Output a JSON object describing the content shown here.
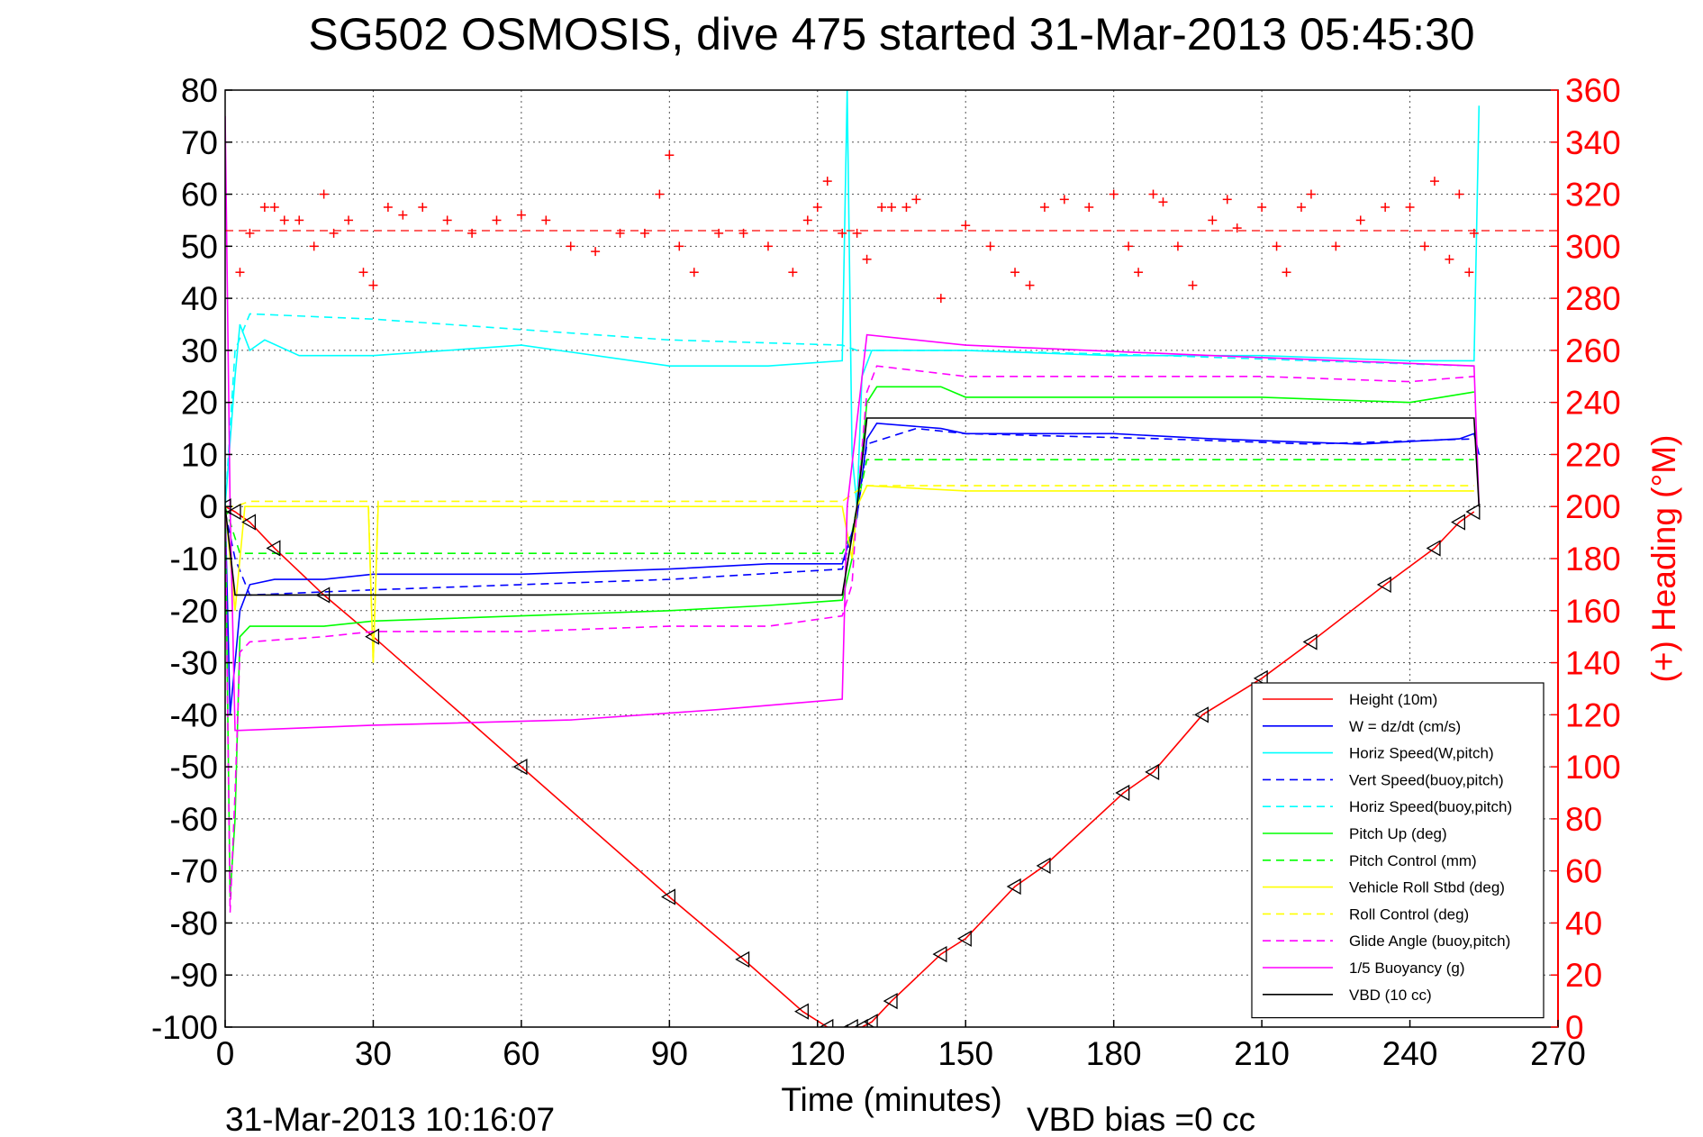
{
  "chart_data": {
    "type": "line",
    "title": "SG502 OSMOSIS, dive 475 started 31-Mar-2013 05:45:30",
    "xlabel": "Time (minutes)",
    "ylabel": "",
    "y2label": "(+) Heading (°M)",
    "xlim": [
      0,
      270
    ],
    "ylim": [
      -100,
      80
    ],
    "y2lim": [
      0,
      360
    ],
    "xticks": [
      "0",
      "30",
      "60",
      "90",
      "120",
      "150",
      "180",
      "210",
      "240",
      "270"
    ],
    "yticks": [
      "80",
      "70",
      "60",
      "50",
      "40",
      "30",
      "20",
      "10",
      "0",
      "-10",
      "-20",
      "-30",
      "-40",
      "-50",
      "-60",
      "-70",
      "-80",
      "-90",
      "-100"
    ],
    "y2ticks": [
      "360",
      "340",
      "320",
      "300",
      "280",
      "260",
      "240",
      "220",
      "200",
      "180",
      "160",
      "140",
      "120",
      "100",
      "80",
      "60",
      "40",
      "20",
      "0"
    ],
    "grid": true,
    "legend_position": "bottom-right",
    "footer_left": "31-Mar-2013 10:16:07",
    "footer_right": "VBD bias =0 cc",
    "colors": {
      "height": "#ff0000",
      "w": "#0000ff",
      "horiz": "#00ffff",
      "pitch": "#00ff00",
      "roll": "#ffff00",
      "glide": "#ff00ff",
      "vbd": "#000000",
      "heading": "#ff0000"
    },
    "series": [
      {
        "name": "Height (10m)",
        "style": "solid",
        "color": "#ff0000",
        "x": [
          0,
          2,
          5,
          10,
          20,
          30,
          60,
          90,
          105,
          117,
          122,
          125,
          127,
          129,
          131,
          135,
          145,
          150,
          160,
          166,
          182,
          188,
          198,
          210,
          220,
          235,
          245,
          250,
          253
        ],
        "y": [
          0,
          -1,
          -3,
          -8,
          -17,
          -25,
          -50,
          -75,
          -87,
          -97,
          -100,
          -101,
          -100,
          -100,
          -99,
          -95,
          -86,
          -83,
          -73,
          -69,
          -55,
          -51,
          -40,
          -33,
          -26,
          -15,
          -8,
          -3,
          -1
        ]
      },
      {
        "name": "W = dz/dt (cm/s)",
        "style": "solid",
        "color": "#0000ff",
        "x": [
          0,
          1,
          2,
          3,
          5,
          10,
          20,
          30,
          60,
          90,
          110,
          125,
          127,
          128,
          130,
          132,
          145,
          150,
          180,
          200,
          230,
          250,
          253,
          254
        ],
        "y": [
          0,
          -40,
          -30,
          -20,
          -15,
          -14,
          -14,
          -13,
          -13,
          -12,
          -11,
          -11,
          -5,
          -2,
          13,
          16,
          15,
          14,
          14,
          13,
          12,
          13,
          14,
          10
        ]
      },
      {
        "name": "Horiz Speed(W,pitch)",
        "style": "solid",
        "color": "#00ffff",
        "x": [
          0,
          2,
          3,
          5,
          8,
          15,
          30,
          60,
          90,
          110,
          125,
          126,
          127,
          128,
          129,
          131,
          150,
          180,
          210,
          240,
          253,
          254
        ],
        "y": [
          0,
          25,
          35,
          30,
          32,
          29,
          29,
          31,
          27,
          27,
          28,
          80,
          10,
          0,
          25,
          30,
          30,
          29,
          29,
          28,
          28,
          77
        ]
      },
      {
        "name": "Vert Speed(buoy,pitch)",
        "style": "dashed",
        "color": "#0000ff",
        "x": [
          0,
          2,
          5,
          30,
          60,
          90,
          125,
          128,
          130,
          140,
          150,
          190,
          220,
          253
        ],
        "y": [
          -1,
          -10,
          -17,
          -16,
          -15,
          -14,
          -12,
          -2,
          12,
          15,
          14,
          13,
          12,
          13
        ]
      },
      {
        "name": "Horiz Speed(buoy,pitch)",
        "style": "dashed",
        "color": "#00ffff",
        "x": [
          0,
          2,
          5,
          30,
          60,
          90,
          125,
          128,
          130,
          150,
          190,
          220,
          253
        ],
        "y": [
          0,
          30,
          37,
          36,
          34,
          32,
          31,
          30,
          30,
          30,
          29,
          28,
          27
        ]
      },
      {
        "name": "Pitch Up (deg)",
        "style": "solid",
        "color": "#00ff00",
        "x": [
          0,
          1,
          2,
          3,
          5,
          20,
          30,
          60,
          90,
          110,
          125,
          127,
          128,
          130,
          132,
          145,
          150,
          180,
          210,
          240,
          253
        ],
        "y": [
          0,
          -75,
          -60,
          -25,
          -23,
          -23,
          -22,
          -21,
          -20,
          -19,
          -18,
          -10,
          0,
          20,
          23,
          23,
          21,
          21,
          21,
          20,
          22
        ]
      },
      {
        "name": "Pitch Control (mm)",
        "style": "dashed",
        "color": "#00ff00",
        "x": [
          0,
          3,
          5,
          125,
          127,
          128,
          130,
          150,
          253
        ],
        "y": [
          0,
          -9,
          -9,
          -9,
          -5,
          0,
          9,
          9,
          9
        ]
      },
      {
        "name": "Vehicle Roll Stbd (deg)",
        "style": "solid",
        "color": "#ffff00",
        "x": [
          0,
          2,
          4,
          10,
          20,
          29,
          30,
          31,
          60,
          90,
          125,
          127,
          128,
          130,
          150,
          180,
          210,
          240,
          253
        ],
        "y": [
          0,
          -20,
          0,
          0,
          0,
          0,
          -30,
          0,
          0,
          0,
          0,
          -10,
          0,
          4,
          3,
          3,
          3,
          3,
          3
        ]
      },
      {
        "name": "Roll Control (deg)",
        "style": "dashed",
        "color": "#ffff00",
        "x": [
          0,
          2,
          5,
          29,
          30,
          31,
          125,
          128,
          130,
          253
        ],
        "y": [
          0,
          0,
          1,
          1,
          -30,
          1,
          1,
          3,
          4,
          4
        ]
      },
      {
        "name": "Glide Angle (buoy,pitch)",
        "style": "dashed",
        "color": "#ff00ff",
        "x": [
          0,
          1,
          2,
          3,
          5,
          20,
          30,
          60,
          90,
          110,
          125,
          127,
          128,
          130,
          132,
          150,
          180,
          210,
          240,
          253
        ],
        "y": [
          0,
          -78,
          -55,
          -28,
          -26,
          -25,
          -24,
          -24,
          -23,
          -23,
          -21,
          -15,
          0,
          22,
          27,
          25,
          25,
          25,
          24,
          25
        ]
      },
      {
        "name": "1/5 Buoyancy (g)",
        "style": "solid",
        "color": "#ff00ff",
        "x": [
          0,
          1,
          2,
          3,
          30,
          70,
          100,
          125,
          126,
          130,
          150,
          200,
          253,
          254
        ],
        "y": [
          75,
          0,
          -43,
          -43,
          -42,
          -41,
          -39,
          -37,
          0,
          33,
          31,
          29,
          27,
          0
        ]
      },
      {
        "name": "VBD (10 cc)",
        "style": "solid",
        "color": "#000000",
        "x": [
          0,
          2,
          5,
          125,
          128,
          130,
          253,
          254
        ],
        "y": [
          0,
          -17,
          -17,
          -17,
          0,
          17,
          17,
          0
        ]
      }
    ],
    "heading": {
      "name": "(+) Heading",
      "axis": "right",
      "marker": "+",
      "color": "#ff0000",
      "target": 306,
      "x": [
        3,
        5,
        8,
        10,
        12,
        15,
        18,
        20,
        22,
        25,
        28,
        30,
        33,
        36,
        40,
        45,
        50,
        55,
        60,
        65,
        70,
        75,
        80,
        85,
        88,
        90,
        92,
        95,
        100,
        105,
        110,
        115,
        118,
        120,
        122,
        125,
        128,
        130,
        133,
        135,
        138,
        140,
        145,
        150,
        155,
        160,
        163,
        166,
        170,
        175,
        180,
        183,
        185,
        188,
        190,
        193,
        196,
        200,
        203,
        205,
        210,
        213,
        215,
        218,
        220,
        225,
        230,
        235,
        240,
        243,
        245,
        248,
        250,
        252,
        253
      ],
      "y": [
        290,
        305,
        315,
        315,
        310,
        310,
        300,
        320,
        305,
        310,
        290,
        285,
        315,
        312,
        315,
        310,
        305,
        310,
        312,
        310,
        300,
        298,
        305,
        305,
        320,
        335,
        300,
        290,
        305,
        305,
        300,
        290,
        310,
        315,
        325,
        305,
        305,
        295,
        315,
        315,
        315,
        318,
        280,
        308,
        300,
        290,
        285,
        315,
        318,
        315,
        320,
        300,
        290,
        320,
        317,
        300,
        285,
        310,
        318,
        307,
        315,
        300,
        290,
        315,
        320,
        300,
        310,
        315,
        315,
        300,
        325,
        295,
        320,
        290,
        305
      ]
    }
  }
}
